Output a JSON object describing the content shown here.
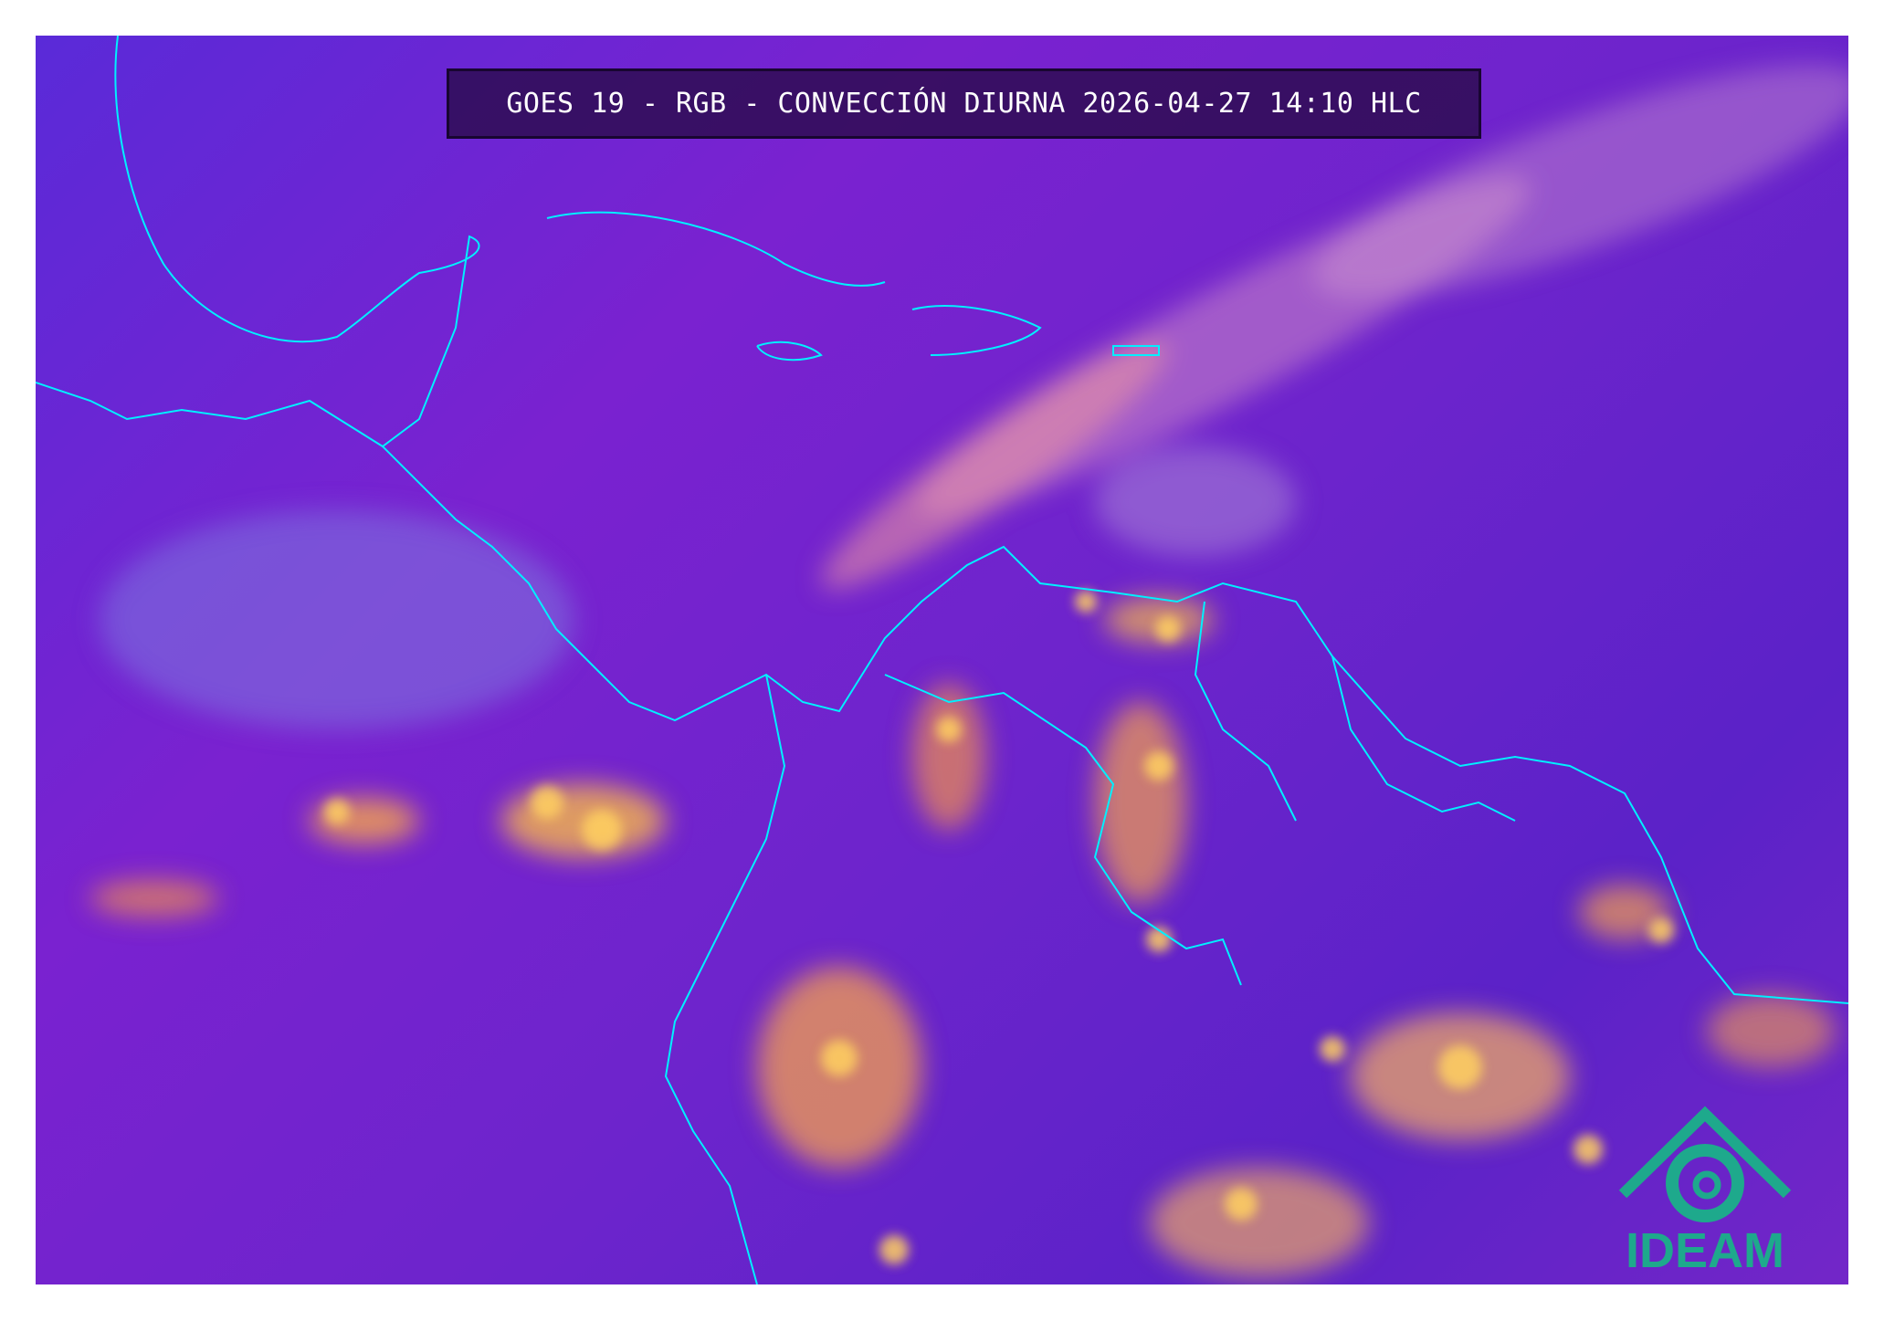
{
  "title": "GOES 19 - RGB - CONVECCIÓN DIURNA 2026-04-27 14:10 HLC",
  "logo": {
    "text": "IDEAM",
    "color": "#1ea98c"
  },
  "colors": {
    "background": "#6a24cc",
    "coastline": "#00f0ff",
    "convection": "#f7b84a",
    "cloud_pink": "#f08a9a"
  }
}
